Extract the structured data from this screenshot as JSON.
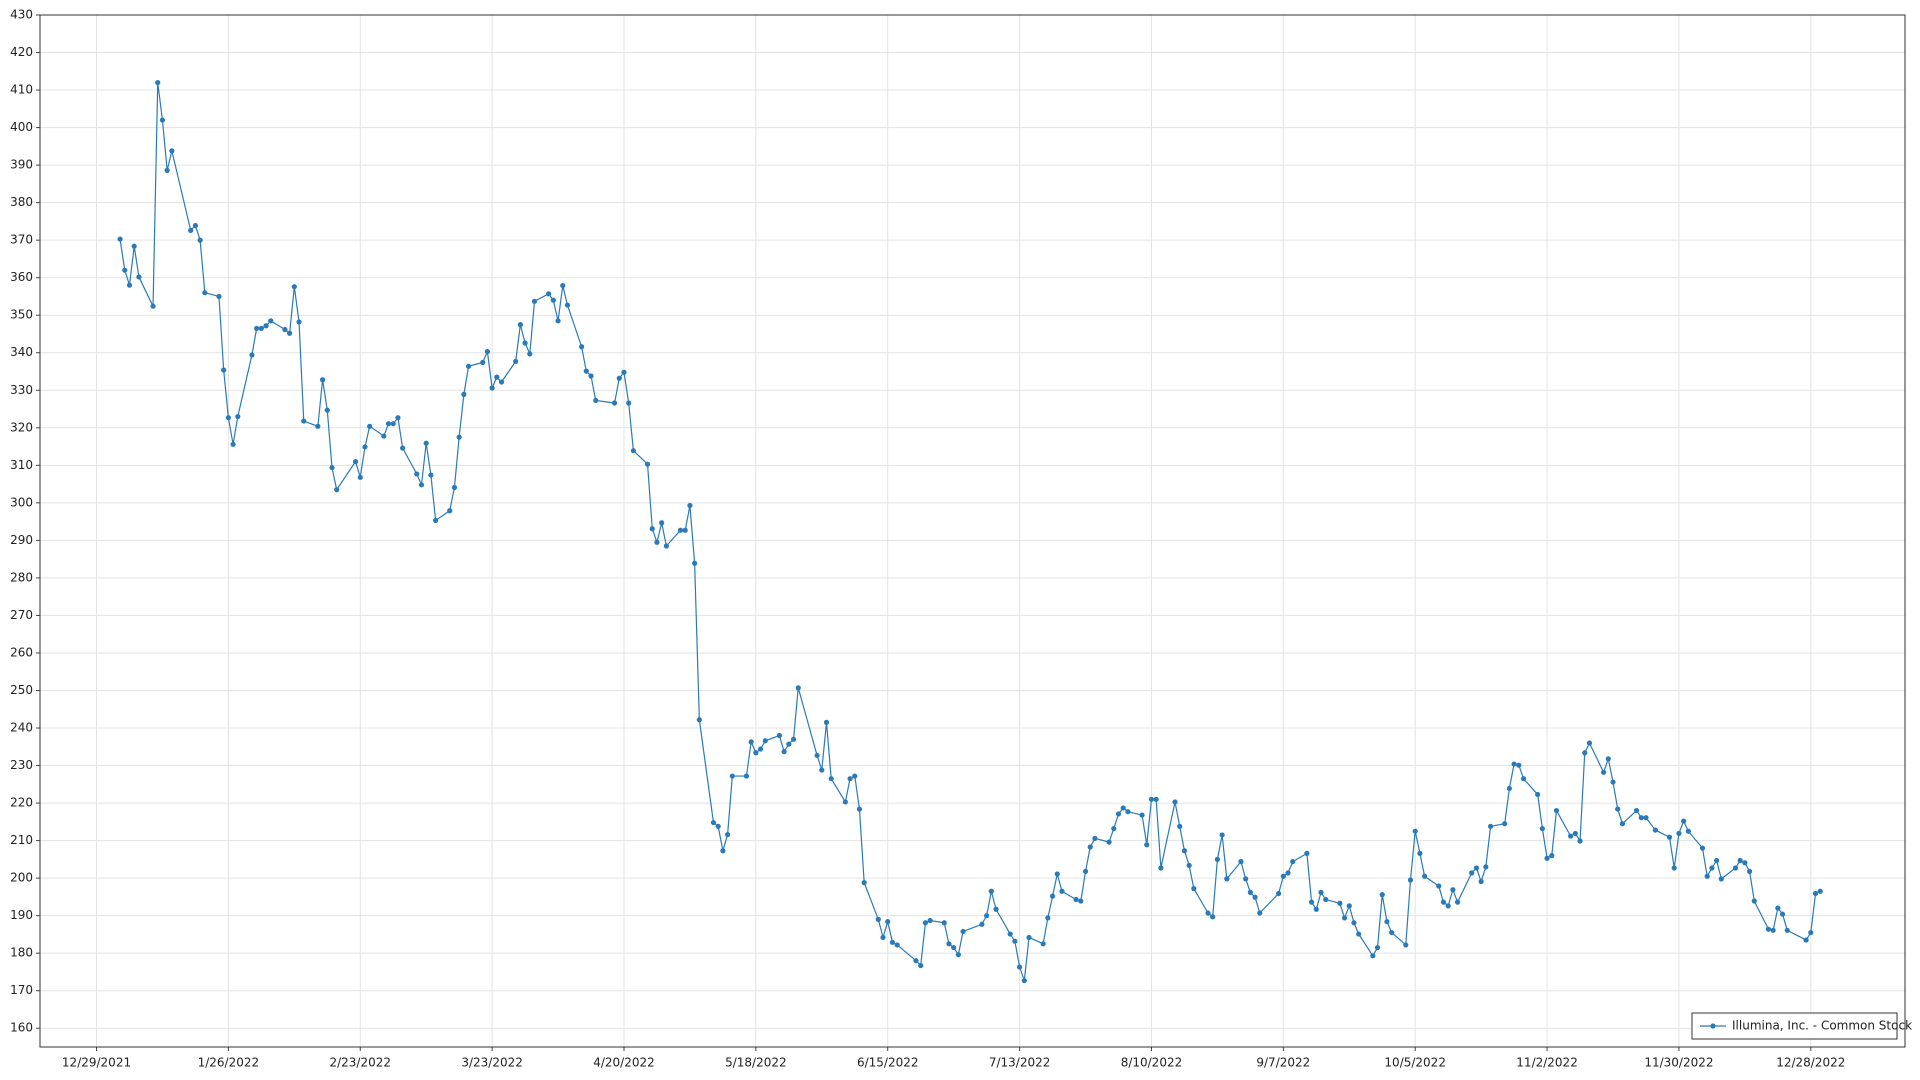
{
  "chart_data": {
    "type": "line",
    "grid": true,
    "legend": "lower right",
    "xlim": [
      "2021-12-17",
      "2023-01-17"
    ],
    "xticks": [
      {
        "value": "2021-12-29",
        "label": "12/29/2021"
      },
      {
        "value": "2022-01-26",
        "label": "1/26/2022"
      },
      {
        "value": "2022-02-23",
        "label": "2/23/2022"
      },
      {
        "value": "2022-03-23",
        "label": "3/23/2022"
      },
      {
        "value": "2022-04-20",
        "label": "4/20/2022"
      },
      {
        "value": "2022-05-18",
        "label": "5/18/2022"
      },
      {
        "value": "2022-06-15",
        "label": "6/15/2022"
      },
      {
        "value": "2022-07-13",
        "label": "7/13/2022"
      },
      {
        "value": "2022-08-10",
        "label": "8/10/2022"
      },
      {
        "value": "2022-09-07",
        "label": "9/7/2022"
      },
      {
        "value": "2022-10-05",
        "label": "10/5/2022"
      },
      {
        "value": "2022-11-02",
        "label": "11/2/2022"
      },
      {
        "value": "2022-11-30",
        "label": "11/30/2022"
      },
      {
        "value": "2022-12-28",
        "label": "12/28/2022"
      }
    ],
    "ylim": [
      155,
      430
    ],
    "yticks": [
      160,
      170,
      180,
      190,
      200,
      210,
      220,
      230,
      240,
      250,
      260,
      270,
      280,
      290,
      300,
      310,
      320,
      330,
      340,
      350,
      360,
      370,
      380,
      390,
      400,
      410,
      420,
      430
    ],
    "x": [
      "2022-01-03",
      "2022-01-04",
      "2022-01-05",
      "2022-01-06",
      "2022-01-07",
      "2022-01-10",
      "2022-01-11",
      "2022-01-12",
      "2022-01-13",
      "2022-01-14",
      "2022-01-18",
      "2022-01-19",
      "2022-01-20",
      "2022-01-21",
      "2022-01-24",
      "2022-01-25",
      "2022-01-26",
      "2022-01-27",
      "2022-01-28",
      "2022-01-31",
      "2022-02-01",
      "2022-02-02",
      "2022-02-03",
      "2022-02-04",
      "2022-02-07",
      "2022-02-08",
      "2022-02-09",
      "2022-02-10",
      "2022-02-11",
      "2022-02-14",
      "2022-02-15",
      "2022-02-16",
      "2022-02-17",
      "2022-02-18",
      "2022-02-22",
      "2022-02-23",
      "2022-02-24",
      "2022-02-25",
      "2022-02-28",
      "2022-03-01",
      "2022-03-02",
      "2022-03-03",
      "2022-03-04",
      "2022-03-07",
      "2022-03-08",
      "2022-03-09",
      "2022-03-10",
      "2022-03-11",
      "2022-03-14",
      "2022-03-15",
      "2022-03-16",
      "2022-03-17",
      "2022-03-18",
      "2022-03-21",
      "2022-03-22",
      "2022-03-23",
      "2022-03-24",
      "2022-03-25",
      "2022-03-28",
      "2022-03-29",
      "2022-03-30",
      "2022-03-31",
      "2022-04-01",
      "2022-04-04",
      "2022-04-05",
      "2022-04-06",
      "2022-04-07",
      "2022-04-08",
      "2022-04-11",
      "2022-04-12",
      "2022-04-13",
      "2022-04-14",
      "2022-04-18",
      "2022-04-19",
      "2022-04-20",
      "2022-04-21",
      "2022-04-22",
      "2022-04-25",
      "2022-04-26",
      "2022-04-27",
      "2022-04-28",
      "2022-04-29",
      "2022-05-02",
      "2022-05-03",
      "2022-05-04",
      "2022-05-05",
      "2022-05-06",
      "2022-05-09",
      "2022-05-10",
      "2022-05-11",
      "2022-05-12",
      "2022-05-13",
      "2022-05-16",
      "2022-05-17",
      "2022-05-18",
      "2022-05-19",
      "2022-05-20",
      "2022-05-23",
      "2022-05-24",
      "2022-05-25",
      "2022-05-26",
      "2022-05-27",
      "2022-05-31",
      "2022-06-01",
      "2022-06-02",
      "2022-06-03",
      "2022-06-06",
      "2022-06-07",
      "2022-06-08",
      "2022-06-09",
      "2022-06-10",
      "2022-06-13",
      "2022-06-14",
      "2022-06-15",
      "2022-06-16",
      "2022-06-17",
      "2022-06-21",
      "2022-06-22",
      "2022-06-23",
      "2022-06-24",
      "2022-06-27",
      "2022-06-28",
      "2022-06-29",
      "2022-06-30",
      "2022-07-01",
      "2022-07-05",
      "2022-07-06",
      "2022-07-07",
      "2022-07-08",
      "2022-07-11",
      "2022-07-12",
      "2022-07-13",
      "2022-07-14",
      "2022-07-15",
      "2022-07-18",
      "2022-07-19",
      "2022-07-20",
      "2022-07-21",
      "2022-07-22",
      "2022-07-25",
      "2022-07-26",
      "2022-07-27",
      "2022-07-28",
      "2022-07-29",
      "2022-08-01",
      "2022-08-02",
      "2022-08-03",
      "2022-08-04",
      "2022-08-05",
      "2022-08-08",
      "2022-08-09",
      "2022-08-10",
      "2022-08-11",
      "2022-08-12",
      "2022-08-15",
      "2022-08-16",
      "2022-08-17",
      "2022-08-18",
      "2022-08-19",
      "2022-08-22",
      "2022-08-23",
      "2022-08-24",
      "2022-08-25",
      "2022-08-26",
      "2022-08-29",
      "2022-08-30",
      "2022-08-31",
      "2022-09-01",
      "2022-09-02",
      "2022-09-06",
      "2022-09-07",
      "2022-09-08",
      "2022-09-09",
      "2022-09-12",
      "2022-09-13",
      "2022-09-14",
      "2022-09-15",
      "2022-09-16",
      "2022-09-19",
      "2022-09-20",
      "2022-09-21",
      "2022-09-22",
      "2022-09-23",
      "2022-09-26",
      "2022-09-27",
      "2022-09-28",
      "2022-09-29",
      "2022-09-30",
      "2022-10-03",
      "2022-10-04",
      "2022-10-05",
      "2022-10-06",
      "2022-10-07",
      "2022-10-10",
      "2022-10-11",
      "2022-10-12",
      "2022-10-13",
      "2022-10-14",
      "2022-10-17",
      "2022-10-18",
      "2022-10-19",
      "2022-10-20",
      "2022-10-21",
      "2022-10-24",
      "2022-10-25",
      "2022-10-26",
      "2022-10-27",
      "2022-10-28",
      "2022-10-31",
      "2022-11-01",
      "2022-11-02",
      "2022-11-03",
      "2022-11-04",
      "2022-11-07",
      "2022-11-08",
      "2022-11-09",
      "2022-11-10",
      "2022-11-11",
      "2022-11-14",
      "2022-11-15",
      "2022-11-16",
      "2022-11-17",
      "2022-11-18",
      "2022-11-21",
      "2022-11-22",
      "2022-11-23",
      "2022-11-25",
      "2022-11-28",
      "2022-11-29",
      "2022-11-30",
      "2022-12-01",
      "2022-12-02",
      "2022-12-05",
      "2022-12-06",
      "2022-12-07",
      "2022-12-08",
      "2022-12-09",
      "2022-12-12",
      "2022-12-13",
      "2022-12-14",
      "2022-12-15",
      "2022-12-16",
      "2022-12-19",
      "2022-12-20",
      "2022-12-21",
      "2022-12-22",
      "2022-12-23",
      "2022-12-27",
      "2022-12-28",
      "2022-12-29",
      "2022-12-30"
    ],
    "series": [
      {
        "name": "Illumina, Inc. - Common Stock",
        "color": "#2a7ab8",
        "values": [
          370.3,
          362,
          358,
          368.4,
          360.2,
          352.4,
          412,
          402,
          388.6,
          393.8,
          372.6,
          373.9,
          370,
          356,
          355,
          335.4,
          322.7,
          315.6,
          323,
          339.4,
          346.5,
          346.5,
          347.2,
          348.5,
          346.2,
          345.2,
          357.6,
          348.2,
          321.8,
          320.4,
          332.8,
          324.7,
          309.4,
          303.5,
          311,
          306.8,
          314.9,
          320.4,
          317.8,
          321.1,
          321.1,
          322.7,
          314.6,
          307.7,
          304.8,
          315.9,
          307.4,
          295.3,
          297.9,
          304.1,
          317.5,
          328.9,
          336.4,
          337.4,
          340.3,
          330.6,
          333.5,
          332.2,
          337.7,
          347.5,
          342.6,
          339.7,
          353.7,
          355.7,
          354,
          348.5,
          357.9,
          352.7,
          341.6,
          335.1,
          333.8,
          327.3,
          326.6,
          333.2,
          334.8,
          326.6,
          313.9,
          310.3,
          293.1,
          289.5,
          294.7,
          288.5,
          292.7,
          292.7,
          299.3,
          283.9,
          242.2,
          214.8,
          213.8,
          207.3,
          211.6,
          227.2,
          227.2,
          236.3,
          233.4,
          234.4,
          236.6,
          238,
          233.7,
          235.7,
          237,
          250.7,
          232.7,
          228.8,
          241.5,
          226.5,
          220.3,
          226.5,
          227.2,
          218.4,
          198.8,
          189,
          184.2,
          188.4,
          182.9,
          182.2,
          178,
          176.7,
          188.1,
          188.7,
          188.1,
          182.5,
          181.5,
          179.6,
          185.8,
          187.7,
          190,
          196.5,
          191.7,
          185.1,
          183.2,
          176.3,
          172.7,
          184.2,
          182.5,
          189.4,
          195.2,
          201.1,
          196.5,
          194.3,
          193.9,
          201.8,
          208.3,
          210.6,
          209.6,
          213.2,
          217.1,
          218.7,
          217.7,
          216.8,
          208.9,
          221,
          221,
          202.7,
          220.3,
          213.8,
          207.3,
          203.4,
          197.2,
          190.7,
          189.7,
          205,
          211.5,
          199.8,
          204.4,
          199.8,
          196.2,
          194.9,
          190.7,
          195.9,
          200.5,
          201.4,
          204.4,
          206.6,
          193.6,
          191.7,
          196.2,
          194.3,
          193.3,
          189.4,
          192.6,
          188.1,
          185.1,
          179.3,
          181.5,
          195.6,
          188.4,
          185.5,
          182.2,
          199.5,
          212.5,
          206.6,
          200.5,
          197.9,
          193.6,
          192.6,
          196.9,
          193.6,
          201.4,
          202.7,
          199.1,
          203,
          213.8,
          214.5,
          223.9,
          230.4,
          230.1,
          226.5,
          222.3,
          213.2,
          205.3,
          206,
          218,
          211.2,
          211.9,
          209.9,
          233.4,
          236,
          228.2,
          231.8,
          225.6,
          218.4,
          214.5,
          218,
          216.1,
          216.1,
          212.8,
          210.9,
          202.7,
          211.9,
          215.2,
          212.5,
          208,
          200.5,
          202.7,
          204.7,
          199.8,
          202.7,
          204.7,
          204.1,
          201.8,
          193.9,
          186.4,
          186.1,
          192,
          190.4,
          186.1,
          183.5,
          185.5,
          195.9,
          196.5
        ]
      }
    ]
  }
}
